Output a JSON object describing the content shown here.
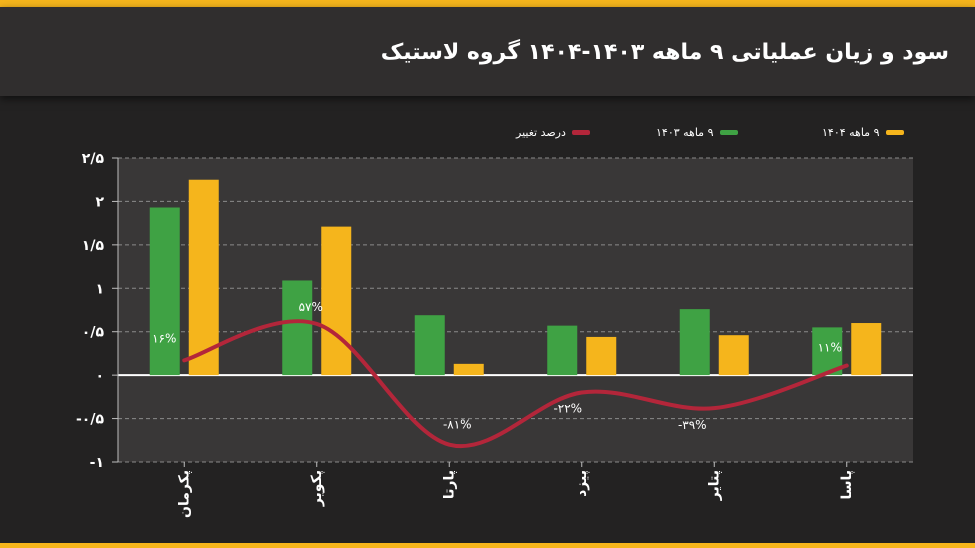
{
  "title": "سود و زیان عملیاتی ۹ ماهه ۱۴۰۳-۱۴۰۴ گروه لاستیک",
  "legend": {
    "series_1404": "۹ ماهه ۱۴۰۴",
    "series_1403": "۹ ماهه ۱۴۰۳",
    "change": "درصد تغییر"
  },
  "colors": {
    "series_1404": "#f5b51c",
    "series_1403": "#3fa244",
    "change": "#b3263a"
  },
  "chart_data": {
    "type": "bar",
    "categories": [
      "پکرمان",
      "پکویر",
      "پارتا",
      "پیزد",
      "پتایر",
      "پاسا"
    ],
    "series": [
      {
        "name": "۹ ماهه ۱۴۰۳",
        "values": [
          1.93,
          1.09,
          0.69,
          0.57,
          0.76,
          0.55
        ]
      },
      {
        "name": "۹ ماهه ۱۴۰۴",
        "values": [
          2.25,
          1.71,
          0.13,
          0.44,
          0.46,
          0.6
        ]
      }
    ],
    "change": {
      "name": "درصد تغییر",
      "values": [
        16,
        57,
        -81,
        -22,
        -39,
        11
      ],
      "labels": [
        "۱۶%",
        "۵۷%",
        "-۸۱%",
        "-۲۲%",
        "-۳۹%",
        "۱۱%"
      ],
      "curve_values": [
        0.17,
        0.59,
        -0.8,
        -0.2,
        -0.38,
        0.11
      ]
    },
    "y_ticks": [
      2.5,
      2,
      1.5,
      1,
      0.5,
      0,
      -0.5,
      -1
    ],
    "y_tick_labels": [
      "۲/۵",
      "۲",
      "۱/۵",
      "۱",
      "۰/۵",
      "۰",
      "-۰/۵",
      "-۱"
    ],
    "ylim": [
      -1,
      2.5
    ],
    "grid": true,
    "xlabel": "",
    "ylabel": ""
  }
}
